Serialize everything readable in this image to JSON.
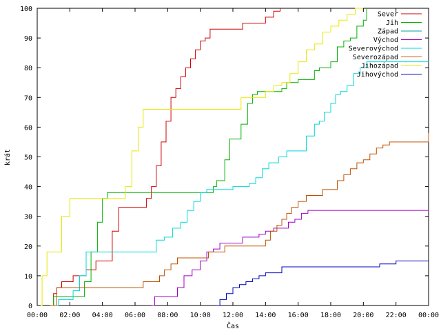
{
  "chart_data": {
    "type": "line",
    "xlabel": "Čas",
    "ylabel": "krát",
    "xlim": [
      0,
      24
    ],
    "ylim": [
      0,
      100
    ],
    "x_ticks": [
      0,
      2,
      4,
      6,
      8,
      10,
      12,
      14,
      16,
      18,
      20,
      22,
      24
    ],
    "x_tick_labels": [
      "00:00",
      "02:00",
      "04:00",
      "06:00",
      "08:00",
      "10:00",
      "12:00",
      "14:00",
      "16:00",
      "18:00",
      "20:00",
      "22:00",
      "00:00"
    ],
    "y_ticks": [
      0,
      10,
      20,
      30,
      40,
      50,
      60,
      70,
      80,
      90,
      100
    ],
    "y_tick_labels": [
      "0",
      "10",
      "20",
      "30",
      "40",
      "50",
      "60",
      "70",
      "80",
      "90",
      "100"
    ],
    "grid": false,
    "legend_position": "top-right",
    "series": [
      {
        "name": "Sever",
        "color": "#d00000",
        "x": [
          0.8,
          1.0,
          1.2,
          1.5,
          2.2,
          3.0,
          3.6,
          4.6,
          5.0,
          5.4,
          6.2,
          6.7,
          7.0,
          7.3,
          7.6,
          7.9,
          8.2,
          8.5,
          8.8,
          9.1,
          9.4,
          9.7,
          10.0,
          10.3,
          10.6,
          11.0,
          11.9,
          12.6,
          13.0,
          13.4,
          14.0,
          14.5,
          14.9
        ],
        "y": [
          0,
          4,
          6,
          8,
          10,
          12,
          15,
          25,
          33,
          33,
          33,
          36,
          40,
          47,
          55,
          62,
          70,
          73,
          77,
          80,
          83,
          86,
          89,
          90,
          93,
          93,
          93,
          95,
          95,
          95,
          97,
          99,
          100
        ]
      },
      {
        "name": "Jih",
        "color": "#00b000",
        "x": [
          0.8,
          1.0,
          1.5,
          2.5,
          2.9,
          3.3,
          3.7,
          4.0,
          4.3,
          5.0,
          6.0,
          7.0,
          8.0,
          9.0,
          10.0,
          10.8,
          11.0,
          11.5,
          11.8,
          12.0,
          12.5,
          12.9,
          13.2,
          13.5,
          13.8,
          14.5,
          15.0,
          15.3,
          15.6,
          16.0,
          16.5,
          17.0,
          17.3,
          17.7,
          18.0,
          18.4,
          18.8,
          19.2,
          19.6,
          20.0,
          20.2
        ],
        "y": [
          0,
          3,
          3,
          3,
          8,
          18,
          28,
          36,
          38,
          38,
          38,
          38,
          38,
          38,
          38,
          40,
          42,
          49,
          56,
          56,
          61,
          68,
          71,
          72,
          72,
          72,
          73,
          75,
          75,
          76,
          76,
          79,
          80,
          80,
          82,
          87,
          89,
          90,
          94,
          96,
          100
        ]
      },
      {
        "name": "Západ",
        "color": "#00a0a0",
        "x": [],
        "y": []
      },
      {
        "name": "Východ",
        "color": "#a000c0",
        "x": [
          7.0,
          7.2,
          8.0,
          8.6,
          9.0,
          9.5,
          10.0,
          10.4,
          10.8,
          11.2,
          11.6,
          12.0,
          12.6,
          13.0,
          13.6,
          14.0,
          14.5,
          15.0,
          15.4,
          15.8,
          16.2,
          16.6,
          17.0,
          18.0,
          20.0,
          22.0,
          24.0
        ],
        "y": [
          0,
          3,
          3,
          6,
          10,
          12,
          15,
          18,
          19,
          21,
          21,
          21,
          23,
          23,
          24,
          25,
          26,
          26,
          28,
          29,
          31,
          32,
          32,
          32,
          32,
          32,
          32
        ]
      },
      {
        "name": "Severovýchod",
        "color": "#00d8d8",
        "x": [
          1.0,
          1.3,
          1.7,
          2.2,
          2.6,
          3.0,
          4.0,
          5.0,
          6.0,
          6.8,
          7.3,
          7.8,
          8.3,
          8.8,
          9.2,
          9.6,
          10.0,
          10.4,
          10.8,
          11.2,
          11.6,
          12.0,
          12.5,
          13.0,
          13.4,
          13.8,
          14.2,
          14.8,
          15.3,
          15.7,
          16.0,
          16.5,
          17.0,
          17.3,
          17.6,
          18.0,
          18.3,
          18.6,
          19.0,
          19.4,
          19.8,
          20.2,
          20.6,
          21.0,
          22.0,
          23.0,
          24.0
        ],
        "y": [
          0,
          2,
          2,
          5,
          10,
          18,
          18,
          18,
          18,
          18,
          22,
          23,
          26,
          28,
          32,
          35,
          38,
          39,
          39,
          39,
          39,
          40,
          40,
          41,
          43,
          46,
          48,
          50,
          52,
          52,
          52,
          57,
          61,
          62,
          65,
          68,
          71,
          72,
          74,
          78,
          80,
          82,
          82,
          82,
          82,
          82,
          82
        ]
      },
      {
        "name": "Severozápad",
        "color": "#c05000",
        "x": [
          0.8,
          1.2,
          2.0,
          3.0,
          4.0,
          5.0,
          6.0,
          6.5,
          7.5,
          7.8,
          8.2,
          8.6,
          9.0,
          10.0,
          10.5,
          11.0,
          11.5,
          12.0,
          12.5,
          13.0,
          14.0,
          14.3,
          14.7,
          15.0,
          15.3,
          15.6,
          16.0,
          16.5,
          17.0,
          17.5,
          18.0,
          18.4,
          18.8,
          19.2,
          19.6,
          20.0,
          20.4,
          20.8,
          21.2,
          21.6,
          22.0,
          23.0,
          23.8,
          24.0
        ],
        "y": [
          0,
          6,
          6,
          6,
          6,
          6,
          6,
          8,
          10,
          12,
          14,
          16,
          16,
          16,
          18,
          18,
          20,
          20,
          20,
          20,
          22,
          25,
          27,
          29,
          31,
          33,
          35,
          37,
          37,
          39,
          39,
          42,
          44,
          46,
          48,
          49,
          51,
          53,
          54,
          55,
          55,
          55,
          55,
          58
        ]
      },
      {
        "name": "Jihozápad",
        "color": "#e8e800",
        "x": [
          0.0,
          0.3,
          0.6,
          1.0,
          1.5,
          2.0,
          3.0,
          4.0,
          5.0,
          5.4,
          5.8,
          6.2,
          6.5,
          7.0,
          8.0,
          9.0,
          10.0,
          11.0,
          12.0,
          12.5,
          13.0,
          13.5,
          14.0,
          14.5,
          15.0,
          15.5,
          16.0,
          16.5,
          17.0,
          17.5,
          18.0,
          18.5,
          19.0,
          19.5,
          20.0
        ],
        "y": [
          0,
          10,
          18,
          18,
          30,
          36,
          36,
          36,
          36,
          40,
          52,
          60,
          66,
          66,
          66,
          66,
          66,
          66,
          66,
          70,
          70,
          70,
          72,
          74,
          75,
          78,
          82,
          86,
          88,
          92,
          94,
          96,
          98,
          100,
          100
        ]
      },
      {
        "name": "Jihovýchod",
        "color": "#0000c0",
        "x": [
          11.0,
          11.2,
          11.6,
          12.0,
          12.4,
          12.8,
          13.2,
          13.6,
          14.0,
          14.5,
          15.0,
          16.0,
          18.0,
          20.0,
          21.0,
          21.5,
          22.0,
          23.0,
          24.0
        ],
        "y": [
          0,
          2,
          4,
          6,
          7,
          8,
          9,
          10,
          11,
          11,
          13,
          13,
          13,
          13,
          14,
          14,
          15,
          15,
          15
        ]
      }
    ]
  }
}
